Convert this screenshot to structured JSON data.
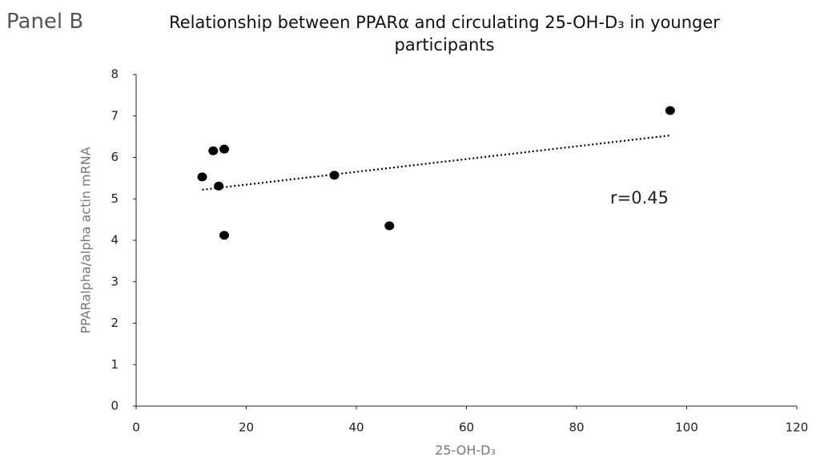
{
  "chart_data": {
    "type": "scatter",
    "panel_label": "Panel B",
    "title": "Relationship between PPARα and circulating 25-OH-D₃ in younger participants",
    "xlabel": "25-OH-D₃",
    "ylabel": "PPARalpha/alpha actin mRNA",
    "annotation": "r=0.45",
    "x": [
      12,
      14,
      16,
      15,
      16,
      36,
      46,
      97
    ],
    "series": [
      {
        "name": "participants",
        "color": "#000000",
        "values": [
          5.53,
          6.16,
          6.2,
          5.31,
          4.12,
          5.57,
          4.35,
          7.13
        ]
      }
    ],
    "trendline": {
      "x": [
        12,
        97
      ],
      "values": [
        5.22,
        6.53
      ],
      "color": "#000000"
    },
    "xlim": [
      0,
      120
    ],
    "xticks": [
      0,
      20,
      40,
      60,
      80,
      100,
      120
    ],
    "ylim": [
      0,
      8
    ],
    "yticks": [
      0,
      1,
      2,
      3,
      4,
      5,
      6,
      7,
      8
    ],
    "grid": false
  }
}
